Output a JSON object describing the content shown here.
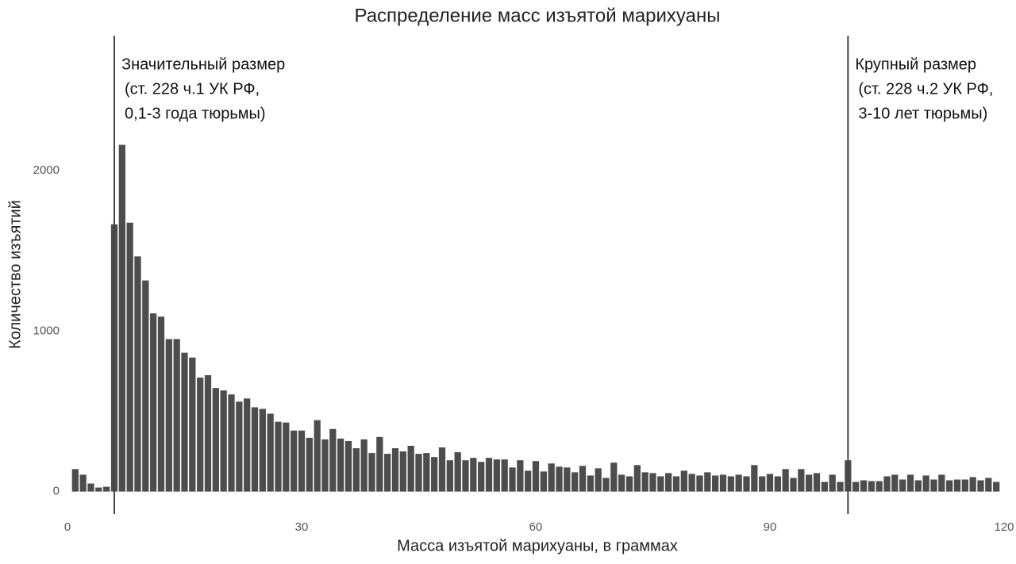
{
  "chart_data": {
    "type": "histogram",
    "title": "Распределение масс изъятой марихуаны",
    "xlabel": "Масса изъятой марихуаны, в граммах",
    "ylabel": "Количество изъятий",
    "color": "#4d4d4d",
    "xlim": [
      0,
      120
    ],
    "ylim": [
      -140,
      2840
    ],
    "xticks": [
      0,
      30,
      60,
      90,
      120
    ],
    "yticks": [
      0,
      1000,
      2000
    ],
    "bins": [
      0.5,
      1.5,
      2.5,
      3.5,
      4.5,
      5.5,
      6.5,
      7.5,
      8.5,
      9.5,
      10.5,
      11.5,
      12.5,
      13.5,
      14.5,
      15.5,
      16.5,
      17.5,
      18.5,
      19.5,
      20.5,
      21.5,
      22.5,
      23.5,
      24.5,
      25.5,
      26.5,
      27.5,
      28.5,
      29.5,
      30.5,
      31.5,
      32.5,
      33.5,
      34.5,
      35.5,
      36.5,
      37.5,
      38.5,
      39.5,
      40.5,
      41.5,
      42.5,
      43.5,
      44.5,
      45.5,
      46.5,
      47.5,
      48.5,
      49.5,
      50.5,
      51.5,
      52.5,
      53.5,
      54.5,
      55.5,
      56.5,
      57.5,
      58.5,
      59.5,
      60.5,
      61.5,
      62.5,
      63.5,
      64.5,
      65.5,
      66.5,
      67.5,
      68.5,
      69.5,
      70.5,
      71.5,
      72.5,
      73.5,
      74.5,
      75.5,
      76.5,
      77.5,
      78.5,
      79.5,
      80.5,
      81.5,
      82.5,
      83.5,
      84.5,
      85.5,
      86.5,
      87.5,
      88.5,
      89.5,
      90.5,
      91.5,
      92.5,
      93.5,
      94.5,
      95.5,
      96.5,
      97.5,
      98.5,
      99.5,
      100.5,
      101.5,
      102.5,
      103.5,
      104.5,
      105.5,
      106.5,
      107.5,
      108.5,
      109.5,
      110.5,
      111.5,
      112.5,
      113.5,
      114.5,
      115.5,
      116.5,
      117.5,
      118.5,
      119.5
    ],
    "values": [
      140,
      105,
      50,
      25,
      30,
      1665,
      2160,
      1675,
      1465,
      1315,
      1110,
      1090,
      950,
      950,
      865,
      835,
      710,
      725,
      645,
      630,
      605,
      560,
      580,
      525,
      515,
      485,
      435,
      430,
      380,
      380,
      335,
      445,
      325,
      390,
      330,
      315,
      270,
      325,
      240,
      340,
      235,
      270,
      250,
      285,
      235,
      240,
      215,
      275,
      195,
      245,
      195,
      210,
      185,
      210,
      200,
      200,
      150,
      195,
      130,
      190,
      125,
      175,
      155,
      150,
      120,
      160,
      100,
      145,
      85,
      180,
      105,
      95,
      165,
      120,
      115,
      95,
      115,
      95,
      130,
      110,
      100,
      120,
      100,
      105,
      95,
      105,
      95,
      165,
      95,
      110,
      95,
      140,
      85,
      140,
      105,
      115,
      60,
      105,
      60,
      195,
      60,
      70,
      65,
      65,
      95,
      105,
      75,
      105,
      70,
      100,
      75,
      105,
      70,
      75,
      75,
      90,
      70,
      85,
      60
    ],
    "annotations": [
      {
        "x": 6,
        "lines": [
          "Значительный размер",
          "(ст. 228 ч.1 УК РФ,",
          "0,1-3 года тюрьмы)"
        ]
      },
      {
        "x": 100,
        "lines": [
          "Крупный размер",
          "(ст. 228 ч.2 УК РФ,",
          "3-10 лет тюрьмы)"
        ]
      }
    ]
  }
}
